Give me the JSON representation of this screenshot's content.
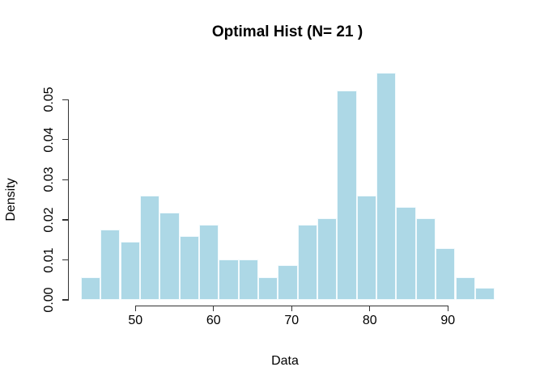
{
  "chart_data": {
    "type": "bar",
    "subtype": "histogram",
    "title": "Optimal Hist (N= 21 )",
    "xlabel": "Data",
    "ylabel": "Density",
    "bin_start": 43,
    "bin_end": 96,
    "n_bins": 21,
    "densities": [
      0.0057,
      0.0175,
      0.0145,
      0.0261,
      0.0218,
      0.016,
      0.0188,
      0.0102,
      0.0102,
      0.0057,
      0.0086,
      0.0188,
      0.0204,
      0.0523,
      0.0261,
      0.0567,
      0.0232,
      0.0204,
      0.013,
      0.0057,
      0.003
    ],
    "x_ticks": [
      50,
      60,
      70,
      80,
      90
    ],
    "y_ticks": [
      "0.00",
      "0.01",
      "0.02",
      "0.03",
      "0.04",
      "0.05"
    ],
    "xlim": [
      40.9,
      98.1
    ],
    "ylim": [
      0,
      0.05
    ],
    "grid": false,
    "legend": "none",
    "bar_fill": "#ADD8E6",
    "bar_border": "#F2FAFD",
    "axis_color": "#333333",
    "text_color": "#000000"
  }
}
